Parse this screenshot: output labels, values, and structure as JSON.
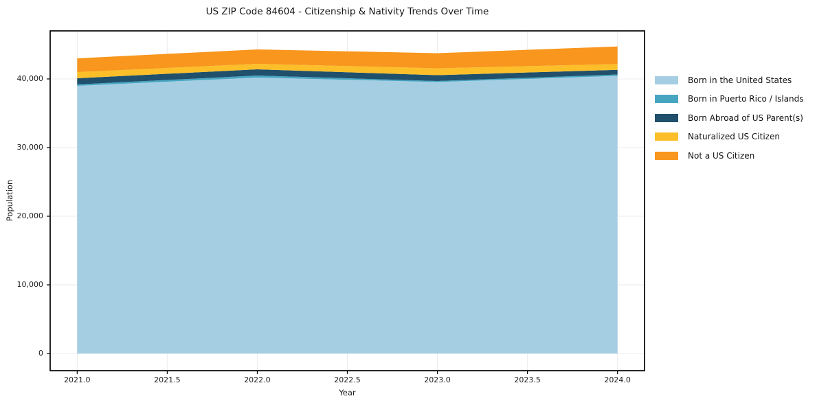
{
  "title": "US ZIP Code 84604 - Citizenship & Nativity Trends Over Time",
  "chart_data": {
    "type": "area",
    "stacked": true,
    "title": "US ZIP Code 84604 - Citizenship & Nativity Trends Over Time",
    "xlabel": "Year",
    "ylabel": "Population",
    "x": [
      2021,
      2022,
      2023,
      2024
    ],
    "series": [
      {
        "name": "Born in the United States",
        "color": "#a6cee3",
        "values": [
          39000,
          40200,
          39550,
          40450
        ]
      },
      {
        "name": "Born in Puerto Rico / Islands",
        "color": "#46a6c2",
        "values": [
          200,
          300,
          150,
          200
        ]
      },
      {
        "name": "Born Abroad of US Parent(s)",
        "color": "#20506b",
        "values": [
          900,
          900,
          850,
          680
        ]
      },
      {
        "name": "Naturalized US Citizen",
        "color": "#fcbf2a",
        "values": [
          900,
          800,
          1000,
          840
        ]
      },
      {
        "name": "Not a US Citizen",
        "color": "#f8961e",
        "values": [
          2000,
          2100,
          2200,
          2560
        ]
      }
    ],
    "totals": [
      43000,
      44300,
      43750,
      44730
    ],
    "x_ticks": [
      2021.0,
      2021.5,
      2022.0,
      2022.5,
      2023.0,
      2023.5,
      2024.0
    ],
    "x_tick_labels": [
      "2021.0",
      "2021.5",
      "2022.0",
      "2022.5",
      "2023.0",
      "2023.5",
      "2024.0"
    ],
    "y_ticks": [
      0,
      10000,
      20000,
      30000,
      40000
    ],
    "y_tick_labels": [
      "0",
      "10,000",
      "20,000",
      "30,000",
      "40,000"
    ],
    "xlim": [
      2020.85,
      2024.15
    ],
    "ylim": [
      -2500,
      47000
    ],
    "grid": true,
    "grid_color": "#ebebeb",
    "frame_color": "#000000",
    "legend_position": "right"
  }
}
